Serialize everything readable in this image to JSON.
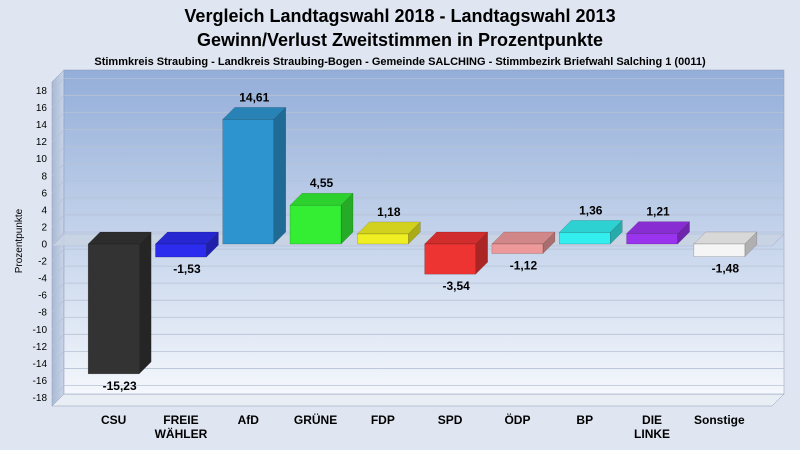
{
  "chart_data": {
    "type": "bar",
    "title": "Vergleich Landtagswahl 2018 - Landtagswahl 2013",
    "subtitle": "Gewinn/Verlust Zweitstimmen in Prozentpunkte",
    "caption": "Stimmkreis Straubing - Landkreis Straubing-Bogen - Gemeinde SALCHING - Stimmbezirk Briefwahl Salching 1 (0011)",
    "ylabel": "Prozentpunkte",
    "ylim": [
      -19,
      19
    ],
    "yticks": [
      18,
      16,
      14,
      12,
      10,
      8,
      6,
      4,
      2,
      0,
      -2,
      -4,
      -6,
      -8,
      -10,
      -12,
      -14,
      -16,
      -18
    ],
    "categories": [
      [
        "CSU"
      ],
      [
        "FREIE",
        "WÄHLER"
      ],
      [
        "AfD"
      ],
      [
        "GRÜNE"
      ],
      [
        "FDP"
      ],
      [
        "SPD"
      ],
      [
        "ÖDP"
      ],
      [
        "BP"
      ],
      [
        "DIE",
        "LINKE"
      ],
      [
        "Sonstige"
      ]
    ],
    "values": [
      -15.23,
      -1.53,
      14.61,
      4.55,
      1.18,
      -3.54,
      -1.12,
      1.36,
      1.21,
      -1.48
    ],
    "value_labels": [
      "-15,23",
      "-1,53",
      "14,61",
      "4,55",
      "1,18",
      "-3,54",
      "-1,12",
      "1,36",
      "1,21",
      "-1,48"
    ],
    "colors": [
      "#333333",
      "#2c2cee",
      "#2d94cf",
      "#33ee33",
      "#eeee22",
      "#ee3333",
      "#ee9999",
      "#33eeee",
      "#9933ee",
      "#f5f5f5"
    ],
    "grid": true,
    "legend": "none"
  }
}
